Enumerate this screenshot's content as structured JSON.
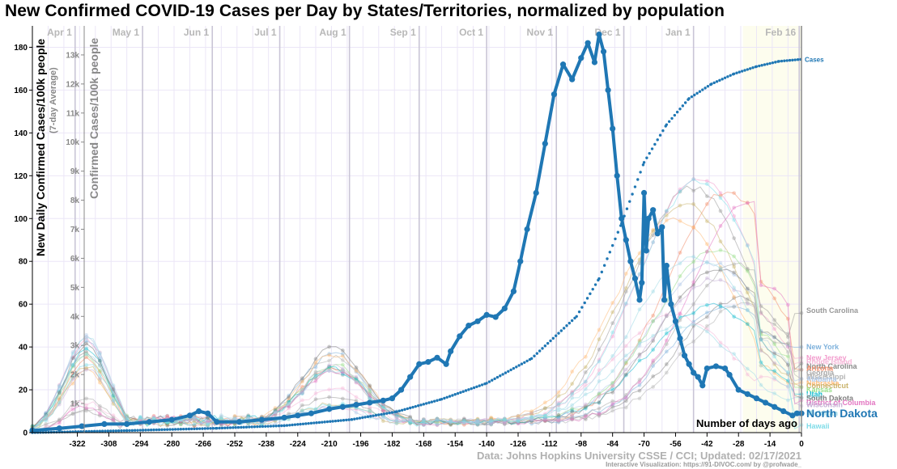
{
  "page": {
    "title": "New Confirmed COVID-19 Cases per Day by States/Territories, normalized by population",
    "source": "Data: Johns Hopkins University CSSE / CCI; Updated: 02/17/2021",
    "credit": "Interactive Visualization: https://91-DIVOC.com/ by @profwade_"
  },
  "colors": {
    "highlight": "#1f77b4",
    "grid_month": "#c9c5d6",
    "grid_minor": "#ebe6f7",
    "cumulative": "#1f77b4",
    "future_shade": "#fdfdee"
  },
  "chart_data": {
    "type": "line",
    "title": "New Confirmed COVID-19 Cases per Day by States/Territories, normalized by population",
    "xlabel": "Number of days ago",
    "ylabel": "New Daily Confirmed Cases/100k people",
    "ylabel_sub": "(7-day Average)",
    "y2label": "Confirmed Cases/100k people",
    "xlim": [
      -342,
      0
    ],
    "ylim": [
      0,
      190
    ],
    "y2lim": [
      0,
      14000
    ],
    "x_ticks": [
      -322,
      -308,
      -294,
      -280,
      -266,
      -252,
      -238,
      -224,
      -210,
      -196,
      -182,
      -168,
      -154,
      -140,
      -126,
      -112,
      -98,
      -84,
      -70,
      -56,
      -42,
      -28,
      -14,
      0
    ],
    "y_ticks": [
      0,
      20,
      40,
      60,
      80,
      100,
      120,
      140,
      160,
      180
    ],
    "y2_ticks": [
      {
        "value": 1000,
        "label": "1k"
      },
      {
        "value": 2000,
        "label": "2k"
      },
      {
        "value": 3000,
        "label": "3k"
      },
      {
        "value": 4000,
        "label": "4k"
      },
      {
        "value": 5000,
        "label": "5k"
      },
      {
        "value": 6000,
        "label": "6k"
      },
      {
        "value": 7000,
        "label": "7k"
      },
      {
        "value": 8000,
        "label": "8k"
      },
      {
        "value": 9000,
        "label": "9k"
      },
      {
        "value": 10000,
        "label": "10k"
      },
      {
        "value": 11000,
        "label": "11k"
      },
      {
        "value": 12000,
        "label": "12k"
      },
      {
        "value": 13000,
        "label": "13k"
      }
    ],
    "month_markers": [
      {
        "label": "Apr 1",
        "x": -323
      },
      {
        "label": "May 1",
        "x": -293
      },
      {
        "label": "Jun 1",
        "x": -262
      },
      {
        "label": "Jul 1",
        "x": -232
      },
      {
        "label": "Aug 1",
        "x": -201
      },
      {
        "label": "Sep 1",
        "x": -170
      },
      {
        "label": "Oct 1",
        "x": -140
      },
      {
        "label": "Nov 1",
        "x": -109
      },
      {
        "label": "Dec 1",
        "x": -79
      },
      {
        "label": "Jan 1",
        "x": -48
      },
      {
        "label": "Feb 16",
        "x": -1
      }
    ],
    "grid": true,
    "highlight_series": {
      "name": "North Dakota",
      "points": [
        [
          -342,
          1
        ],
        [
          -330,
          2
        ],
        [
          -320,
          3
        ],
        [
          -310,
          4
        ],
        [
          -300,
          4
        ],
        [
          -290,
          5
        ],
        [
          -280,
          6
        ],
        [
          -272,
          8
        ],
        [
          -268,
          10
        ],
        [
          -264,
          9
        ],
        [
          -260,
          5
        ],
        [
          -250,
          5
        ],
        [
          -240,
          6
        ],
        [
          -230,
          7
        ],
        [
          -224,
          8
        ],
        [
          -218,
          9
        ],
        [
          -210,
          11
        ],
        [
          -204,
          12
        ],
        [
          -198,
          13
        ],
        [
          -192,
          14
        ],
        [
          -186,
          15
        ],
        [
          -182,
          16
        ],
        [
          -178,
          20
        ],
        [
          -174,
          26
        ],
        [
          -170,
          32
        ],
        [
          -166,
          33
        ],
        [
          -162,
          35
        ],
        [
          -158,
          32
        ],
        [
          -156,
          38
        ],
        [
          -152,
          45
        ],
        [
          -148,
          50
        ],
        [
          -144,
          52
        ],
        [
          -140,
          55
        ],
        [
          -136,
          54
        ],
        [
          -132,
          58
        ],
        [
          -128,
          66
        ],
        [
          -125,
          80
        ],
        [
          -122,
          95
        ],
        [
          -118,
          112
        ],
        [
          -114,
          135
        ],
        [
          -110,
          158
        ],
        [
          -106,
          172
        ],
        [
          -102,
          165
        ],
        [
          -98,
          175
        ],
        [
          -95,
          182
        ],
        [
          -92,
          173
        ],
        [
          -90,
          186
        ],
        [
          -88,
          178
        ],
        [
          -86,
          160
        ],
        [
          -84,
          142
        ],
        [
          -82,
          120
        ],
        [
          -80,
          100
        ],
        [
          -78,
          90
        ],
        [
          -76,
          80
        ],
        [
          -74,
          72
        ],
        [
          -72,
          62
        ],
        [
          -71,
          70
        ],
        [
          -70,
          112
        ],
        [
          -69,
          85
        ],
        [
          -68,
          100
        ],
        [
          -66,
          104
        ],
        [
          -64,
          93
        ],
        [
          -62,
          96
        ],
        [
          -61,
          62
        ],
        [
          -60,
          78
        ],
        [
          -58,
          60
        ],
        [
          -56,
          52
        ],
        [
          -54,
          44
        ],
        [
          -52,
          36
        ],
        [
          -50,
          32
        ],
        [
          -48,
          28
        ],
        [
          -46,
          26
        ],
        [
          -44,
          22
        ],
        [
          -42,
          30
        ],
        [
          -38,
          31
        ],
        [
          -34,
          30
        ],
        [
          -32,
          27
        ],
        [
          -28,
          20
        ],
        [
          -24,
          18
        ],
        [
          -20,
          16
        ],
        [
          -16,
          14
        ],
        [
          -12,
          12
        ],
        [
          -8,
          10
        ],
        [
          -4,
          8
        ],
        [
          -2,
          9
        ],
        [
          0,
          9
        ]
      ]
    },
    "cumulative_series": {
      "name": "Cases",
      "points": [
        [
          -342,
          0
        ],
        [
          -300,
          70
        ],
        [
          -260,
          150
        ],
        [
          -230,
          240
        ],
        [
          -200,
          450
        ],
        [
          -180,
          720
        ],
        [
          -160,
          1150
        ],
        [
          -140,
          1700
        ],
        [
          -120,
          2550
        ],
        [
          -100,
          4000
        ],
        [
          -90,
          5300
        ],
        [
          -80,
          7200
        ],
        [
          -70,
          9300
        ],
        [
          -60,
          10600
        ],
        [
          -50,
          11500
        ],
        [
          -40,
          12000
        ],
        [
          -30,
          12350
        ],
        [
          -20,
          12600
        ],
        [
          -10,
          12780
        ],
        [
          0,
          12850
        ]
      ]
    },
    "state_labels": [
      {
        "name": "South Carolina",
        "y": 57,
        "color": "#999999"
      },
      {
        "name": "New York",
        "y": 40,
        "color": "#7fb2dc"
      },
      {
        "name": "New Jersey",
        "y": 35,
        "color": "#f29ccd"
      },
      {
        "name": "Rhode Island",
        "y": 33,
        "color": "#f6b6d8"
      },
      {
        "name": "North Carolina",
        "y": 31,
        "color": "#8a8a8a"
      },
      {
        "name": "Arizona",
        "y": 30,
        "color": "#f28e6b"
      },
      {
        "name": "Georgia",
        "y": 28,
        "color": "#a8a8a8"
      },
      {
        "name": "Mississippi",
        "y": 26,
        "color": "#b3b3b3"
      },
      {
        "name": "Alabama",
        "y": 25,
        "color": "#aec7e8"
      },
      {
        "name": "Nebraska",
        "y": 23,
        "color": "#ffbb78"
      },
      {
        "name": "Connecticut",
        "y": 22,
        "color": "#c9b36c"
      },
      {
        "name": "Kansas",
        "y": 20,
        "color": "#98df8a"
      },
      {
        "name": "Utah",
        "y": 18,
        "color": "#17becf"
      },
      {
        "name": "Iowa",
        "y": 17,
        "color": "#9edae5"
      },
      {
        "name": "South Dakota",
        "y": 16,
        "color": "#7f7f7f"
      },
      {
        "name": "District of Columbia",
        "y": 14,
        "color": "#e377c2"
      },
      {
        "name": "Wisconsin",
        "y": 13,
        "color": "#c5b0d5"
      },
      {
        "name": "Michigan",
        "y": 9,
        "color": "#9edae5"
      },
      {
        "name": "Hawaii",
        "y": 3,
        "color": "#7fdce8"
      }
    ],
    "highlight_label": "North Dakota",
    "cumulative_label": "Cases"
  }
}
